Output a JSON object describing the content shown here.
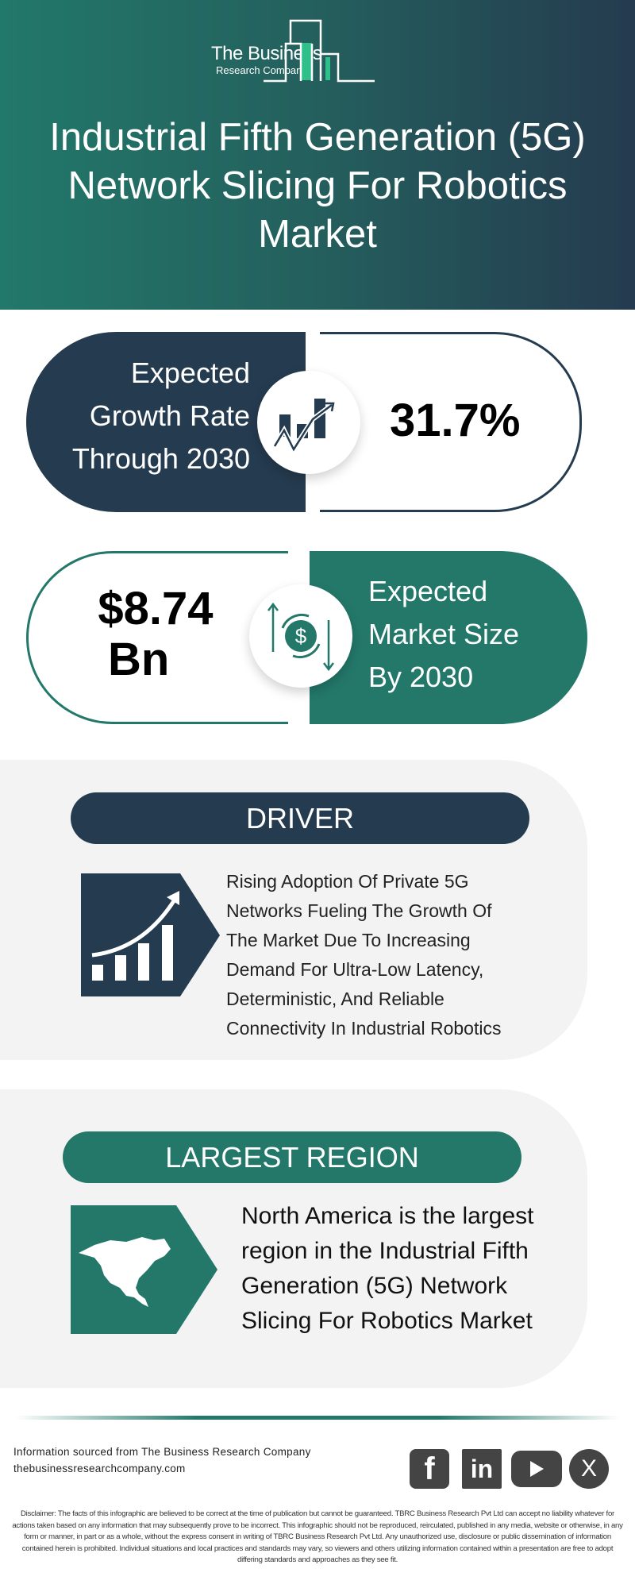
{
  "header": {
    "logo_line1": "The Business",
    "logo_line2": "Research Company",
    "title": "Industrial Fifth Generation (5G) Network Slicing For Robotics Market"
  },
  "growth": {
    "label_lines": [
      "Expected",
      "Growth Rate",
      "Through 2030"
    ],
    "value": "31.7%",
    "icon": "growth-chart-icon"
  },
  "market_size": {
    "value_lines": [
      "$8.74",
      "Bn"
    ],
    "label_lines": [
      "Expected",
      "Market Size",
      "By 2030"
    ],
    "icon": "dollar-cycle-icon"
  },
  "driver": {
    "heading": "DRIVER",
    "text_lines": [
      "Rising Adoption Of Private 5G",
      "Networks Fueling The Growth Of",
      "The Market Due To Increasing",
      "Demand For Ultra-Low Latency,",
      "Deterministic, And Reliable",
      "Connectivity In Industrial Robotics"
    ]
  },
  "region": {
    "heading": "LARGEST REGION",
    "text_lines": [
      "North America is the largest",
      "region in the Industrial Fifth",
      "Generation (5G) Network",
      "Slicing For Robotics Market"
    ]
  },
  "footer": {
    "source": "Information sourced from The Business Research Company",
    "website": "thebusinessresearchcompany.com",
    "social": [
      "facebook-icon",
      "linkedin-icon",
      "youtube-icon",
      "x-icon"
    ],
    "disclaimer": "Disclaimer: The facts of this infographic are believed to be correct at the time of publication but cannot be guaranteed. TBRC Business Research Pvt Ltd can accept no liability whatever for actions taken based on any information that may subsequently prove to be incorrect. This infographic should not be reproduced, reirculated, published in any media, website or otherwise, in any form or manner, in part or as a whole, without the express consent in writing of TBRC Business Research Pvt Ltd. Any unauthorized use, disclosure or public dissemination of information contained herein is prohibited. Individual situations and local practices and standards may vary, so viewers and others utilizing information contained within a presentation are free to adopt differing standards and approaches as they see fit."
  },
  "colors": {
    "navy": "#253b4f",
    "teal": "#23786a",
    "panel": "#f3f3f3"
  }
}
